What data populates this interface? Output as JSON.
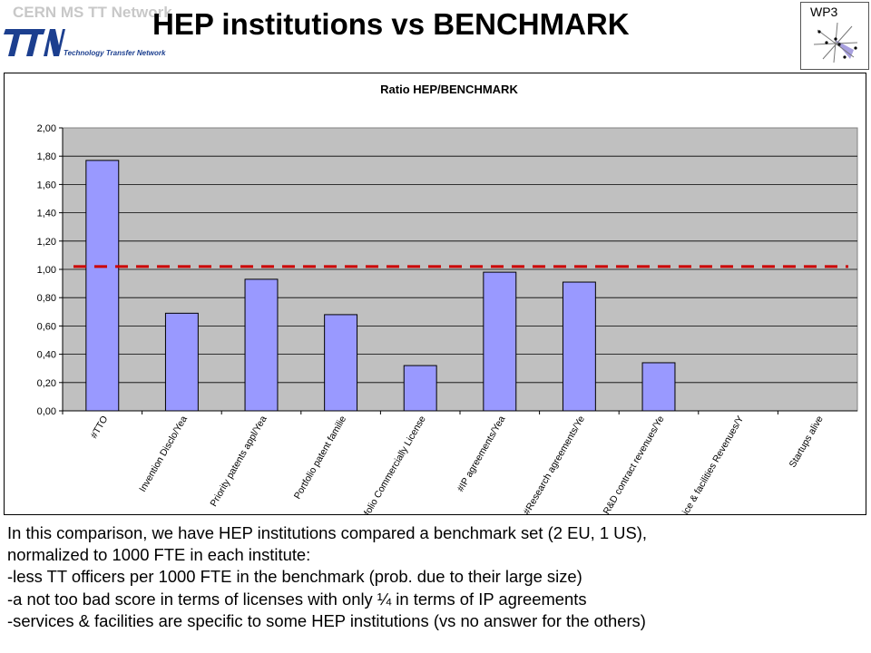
{
  "header": {
    "org": "CERN MS TT Network",
    "logo_text": "TTN",
    "logo_subtitle": "Technology Transfer Network",
    "title": "HEP institutions vs BENCHMARK",
    "badge": "WP3"
  },
  "colors": {
    "bar_fill": "#9999ff",
    "plot_bg": "#c0c0c0",
    "reference_line": "#cc0000",
    "logo_blue": "#1c3f8f"
  },
  "chart_data": {
    "type": "bar",
    "title": "Ratio HEP/BENCHMARK",
    "categories": [
      "#TTO",
      "Invention Disclo/Year",
      "Priority patents appl/Year",
      "Portfolio patent families",
      "Portfolio Commercially Licensed",
      "#IP agreements/Year",
      "#Research agreements/Year",
      "R&D contract revenues/Year",
      "Service & facilities Revenues/Y",
      "Startups alive"
    ],
    "tick_labels": [
      "#TTO",
      "Invention Disclo/Yea",
      "Priority patents appl/Yea",
      "Portfolio patent familie",
      "Portfolio Commercially License",
      "#IP agreements/Yea",
      "#Research agreements/Ye",
      "R&D contract revenues/Ye",
      "ice & facilities Revenues/Y",
      "Startups alive"
    ],
    "values": [
      1.77,
      0.69,
      0.93,
      0.68,
      0.32,
      0.98,
      0.91,
      0.34,
      0,
      0
    ],
    "reference_value": 1.02,
    "ylim": [
      0,
      2
    ],
    "yticks": [
      "0,00",
      "0,20",
      "0,40",
      "0,60",
      "0,80",
      "1,00",
      "1,20",
      "1,40",
      "1,60",
      "1,80",
      "2,00"
    ],
    "grid": true,
    "legend": "none"
  },
  "notes": [
    "In this comparison, we have HEP institutions compared a benchmark set (2 EU, 1 US),",
    "normalized to 1000 FTE in each institute:",
    "-less TT officers per 1000 FTE in the benchmark (prob. due to their large size)",
    "-a not too bad score in terms of licenses with only ¼ in terms of IP agreements",
    "-services & facilities are specific to some HEP institutions (vs no answer for the others)"
  ]
}
